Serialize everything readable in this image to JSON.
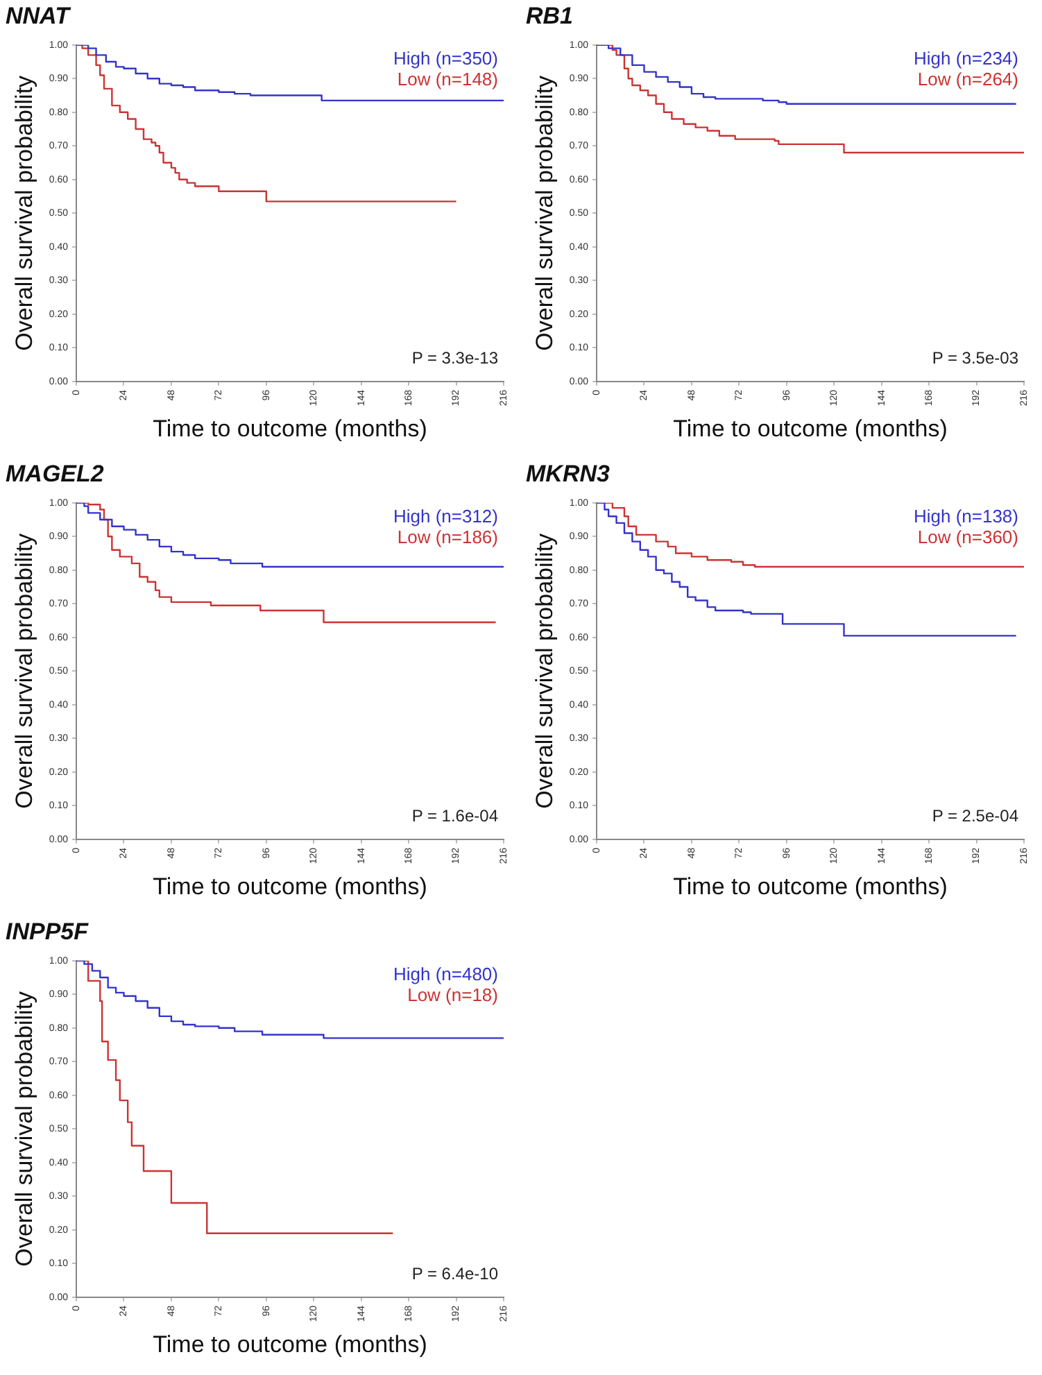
{
  "chart_data": [
    {
      "type": "step",
      "title": "NNAT",
      "xlabel": "Time to outcome (months)",
      "ylabel": "Overall survival probability",
      "xlim": [
        0,
        216
      ],
      "ylim": [
        0,
        1
      ],
      "xticks": [
        0,
        24,
        48,
        72,
        96,
        120,
        144,
        168,
        192,
        216
      ],
      "yticks": [
        {
          "value": 0,
          "label": "0.00"
        },
        {
          "value": 0.1,
          "label": "0.10"
        },
        {
          "value": 0.2,
          "label": "0.20"
        },
        {
          "value": 0.3,
          "label": "0.30"
        },
        {
          "value": 0.4,
          "label": "0.40"
        },
        {
          "value": 0.5,
          "label": "0.50"
        },
        {
          "value": 0.6,
          "label": "0.60"
        },
        {
          "value": 0.7,
          "label": "0.70"
        },
        {
          "value": 0.8,
          "label": "0.80"
        },
        {
          "value": 0.9,
          "label": "0.90"
        },
        {
          "value": 1,
          "label": "1.00"
        }
      ],
      "legend": "top right",
      "annotations": [
        "P = 3.3e-13"
      ],
      "series": [
        {
          "name": "High (n=350)",
          "color": "#3333cc",
          "x": [
            0,
            3,
            6,
            10,
            15,
            20,
            24,
            30,
            36,
            42,
            48,
            54,
            60,
            72,
            80,
            88,
            120,
            124,
            216
          ],
          "values": [
            1,
            1,
            0.99,
            0.97,
            0.95,
            0.935,
            0.93,
            0.915,
            0.9,
            0.885,
            0.88,
            0.875,
            0.865,
            0.86,
            0.855,
            0.85,
            0.85,
            0.835,
            0.835
          ]
        },
        {
          "name": "Low (n=148)",
          "color": "#cc3333",
          "x": [
            0,
            3,
            6,
            10,
            12,
            14,
            18,
            22,
            26,
            30,
            34,
            38,
            40,
            42,
            44,
            48,
            50,
            52,
            56,
            60,
            72,
            95,
            96,
            192
          ],
          "values": [
            1,
            0.99,
            0.97,
            0.94,
            0.91,
            0.87,
            0.82,
            0.8,
            0.78,
            0.75,
            0.72,
            0.71,
            0.7,
            0.68,
            0.65,
            0.635,
            0.62,
            0.6,
            0.59,
            0.58,
            0.565,
            0.565,
            0.535,
            0.535
          ]
        }
      ]
    },
    {
      "type": "step",
      "title": "RB1",
      "xlabel": "Time to outcome (months)",
      "ylabel": "Overall survival probability",
      "xlim": [
        0,
        216
      ],
      "ylim": [
        0,
        1
      ],
      "xticks": [
        0,
        24,
        48,
        72,
        96,
        120,
        144,
        168,
        192,
        216
      ],
      "yticks": [
        {
          "value": 0,
          "label": "0.00"
        },
        {
          "value": 0.1,
          "label": "0.10"
        },
        {
          "value": 0.2,
          "label": "0.20"
        },
        {
          "value": 0.3,
          "label": "0.30"
        },
        {
          "value": 0.4,
          "label": "0.40"
        },
        {
          "value": 0.5,
          "label": "0.50"
        },
        {
          "value": 0.6,
          "label": "0.60"
        },
        {
          "value": 0.7,
          "label": "0.70"
        },
        {
          "value": 0.8,
          "label": "0.80"
        },
        {
          "value": 0.9,
          "label": "0.90"
        },
        {
          "value": 1,
          "label": "1.00"
        }
      ],
      "legend": "top right",
      "annotations": [
        "P = 3.5e-03"
      ],
      "series": [
        {
          "name": "High (n=234)",
          "color": "#3333cc",
          "x": [
            0,
            6,
            12,
            18,
            24,
            30,
            36,
            42,
            48,
            54,
            60,
            84,
            92,
            96,
            212
          ],
          "values": [
            1,
            0.99,
            0.97,
            0.94,
            0.92,
            0.905,
            0.89,
            0.875,
            0.855,
            0.845,
            0.84,
            0.835,
            0.83,
            0.825,
            0.825
          ]
        },
        {
          "name": "Low (n=264)",
          "color": "#cc3333",
          "x": [
            0,
            8,
            10,
            14,
            16,
            18,
            22,
            26,
            30,
            34,
            38,
            44,
            50,
            56,
            62,
            70,
            90,
            92,
            124,
            125,
            216
          ],
          "values": [
            1,
            0.985,
            0.97,
            0.93,
            0.9,
            0.88,
            0.865,
            0.85,
            0.825,
            0.8,
            0.78,
            0.765,
            0.755,
            0.745,
            0.73,
            0.72,
            0.715,
            0.705,
            0.705,
            0.68,
            0.68
          ]
        }
      ]
    },
    {
      "type": "step",
      "title": "MAGEL2",
      "xlabel": "Time to outcome (months)",
      "ylabel": "Overall survival probability",
      "xlim": [
        0,
        216
      ],
      "ylim": [
        0,
        1
      ],
      "xticks": [
        0,
        24,
        48,
        72,
        96,
        120,
        144,
        168,
        192,
        216
      ],
      "yticks": [
        {
          "value": 0,
          "label": "0.00"
        },
        {
          "value": 0.1,
          "label": "0.10"
        },
        {
          "value": 0.2,
          "label": "0.20"
        },
        {
          "value": 0.3,
          "label": "0.30"
        },
        {
          "value": 0.4,
          "label": "0.40"
        },
        {
          "value": 0.5,
          "label": "0.50"
        },
        {
          "value": 0.6,
          "label": "0.60"
        },
        {
          "value": 0.7,
          "label": "0.70"
        },
        {
          "value": 0.8,
          "label": "0.80"
        },
        {
          "value": 0.9,
          "label": "0.90"
        },
        {
          "value": 1,
          "label": "1.00"
        }
      ],
      "legend": "top right",
      "annotations": [
        "P = 1.6e-04"
      ],
      "series": [
        {
          "name": "High (n=312)",
          "color": "#3333cc",
          "x": [
            0,
            4,
            6,
            12,
            18,
            24,
            30,
            36,
            42,
            48,
            54,
            60,
            72,
            78,
            92,
            94,
            216
          ],
          "values": [
            1,
            0.99,
            0.97,
            0.95,
            0.93,
            0.92,
            0.905,
            0.89,
            0.87,
            0.855,
            0.845,
            0.835,
            0.83,
            0.82,
            0.82,
            0.81,
            0.81
          ]
        },
        {
          "name": "Low (n=186)",
          "color": "#cc3333",
          "x": [
            0,
            6,
            12,
            14,
            16,
            18,
            22,
            28,
            32,
            36,
            40,
            42,
            48,
            66,
            68,
            92,
            93,
            124,
            125,
            212
          ],
          "values": [
            1,
            0.995,
            0.98,
            0.95,
            0.9,
            0.86,
            0.84,
            0.82,
            0.78,
            0.765,
            0.74,
            0.72,
            0.705,
            0.705,
            0.695,
            0.695,
            0.68,
            0.68,
            0.645,
            0.645
          ]
        }
      ]
    },
    {
      "type": "step",
      "title": "MKRN3",
      "xlabel": "Time to outcome (months)",
      "ylabel": "Overall survival probability",
      "xlim": [
        0,
        216
      ],
      "ylim": [
        0,
        1
      ],
      "xticks": [
        0,
        24,
        48,
        72,
        96,
        120,
        144,
        168,
        192,
        216
      ],
      "yticks": [
        {
          "value": 0,
          "label": "0.00"
        },
        {
          "value": 0.1,
          "label": "0.10"
        },
        {
          "value": 0.2,
          "label": "0.20"
        },
        {
          "value": 0.3,
          "label": "0.30"
        },
        {
          "value": 0.4,
          "label": "0.40"
        },
        {
          "value": 0.5,
          "label": "0.50"
        },
        {
          "value": 0.6,
          "label": "0.60"
        },
        {
          "value": 0.7,
          "label": "0.70"
        },
        {
          "value": 0.8,
          "label": "0.80"
        },
        {
          "value": 0.9,
          "label": "0.90"
        },
        {
          "value": 1,
          "label": "1.00"
        }
      ],
      "legend": "top right",
      "annotations": [
        "P = 2.5e-04"
      ],
      "series": [
        {
          "name": "High (n=138)",
          "color": "#3333cc",
          "x": [
            0,
            4,
            6,
            10,
            14,
            18,
            22,
            26,
            30,
            34,
            38,
            42,
            46,
            50,
            56,
            60,
            74,
            78,
            92,
            94,
            124,
            125,
            212
          ],
          "values": [
            1,
            0.98,
            0.96,
            0.94,
            0.91,
            0.885,
            0.86,
            0.84,
            0.8,
            0.79,
            0.765,
            0.75,
            0.72,
            0.71,
            0.69,
            0.68,
            0.675,
            0.67,
            0.67,
            0.64,
            0.64,
            0.605,
            0.605
          ]
        },
        {
          "name": "Low (n=360)",
          "color": "#cc3333",
          "x": [
            0,
            8,
            14,
            16,
            20,
            30,
            36,
            40,
            48,
            56,
            68,
            74,
            80,
            216
          ],
          "values": [
            1,
            0.985,
            0.96,
            0.93,
            0.905,
            0.885,
            0.87,
            0.85,
            0.84,
            0.83,
            0.825,
            0.815,
            0.81,
            0.81
          ]
        }
      ]
    },
    {
      "type": "step",
      "title": "INPP5F",
      "xlabel": "Time to outcome (months)",
      "ylabel": "Overall survival probability",
      "xlim": [
        0,
        216
      ],
      "ylim": [
        0,
        1
      ],
      "xticks": [
        0,
        24,
        48,
        72,
        96,
        120,
        144,
        168,
        192,
        216
      ],
      "yticks": [
        {
          "value": 0,
          "label": "0.00"
        },
        {
          "value": 0.1,
          "label": "0.10"
        },
        {
          "value": 0.2,
          "label": "0.20"
        },
        {
          "value": 0.3,
          "label": "0.30"
        },
        {
          "value": 0.4,
          "label": "0.40"
        },
        {
          "value": 0.5,
          "label": "0.50"
        },
        {
          "value": 0.6,
          "label": "0.60"
        },
        {
          "value": 0.7,
          "label": "0.70"
        },
        {
          "value": 0.8,
          "label": "0.80"
        },
        {
          "value": 0.9,
          "label": "0.90"
        },
        {
          "value": 1,
          "label": "1.00"
        }
      ],
      "legend": "top right",
      "annotations": [
        "P = 6.4e-10"
      ],
      "series": [
        {
          "name": "High (n=480)",
          "color": "#3333cc",
          "x": [
            0,
            4,
            8,
            12,
            16,
            20,
            24,
            30,
            36,
            42,
            48,
            54,
            60,
            72,
            80,
            92,
            94,
            124,
            125,
            216
          ],
          "values": [
            1,
            0.99,
            0.97,
            0.95,
            0.92,
            0.905,
            0.895,
            0.88,
            0.86,
            0.835,
            0.82,
            0.81,
            0.805,
            0.8,
            0.79,
            0.79,
            0.78,
            0.78,
            0.77,
            0.77
          ]
        },
        {
          "name": "Low (n=18)",
          "color": "#cc3333",
          "x": [
            0,
            6,
            12,
            13,
            16,
            20,
            22,
            26,
            28,
            34,
            48,
            66,
            160
          ],
          "values": [
            1,
            0.94,
            0.88,
            0.76,
            0.705,
            0.645,
            0.585,
            0.52,
            0.45,
            0.375,
            0.28,
            0.19,
            0.19
          ]
        }
      ]
    }
  ]
}
